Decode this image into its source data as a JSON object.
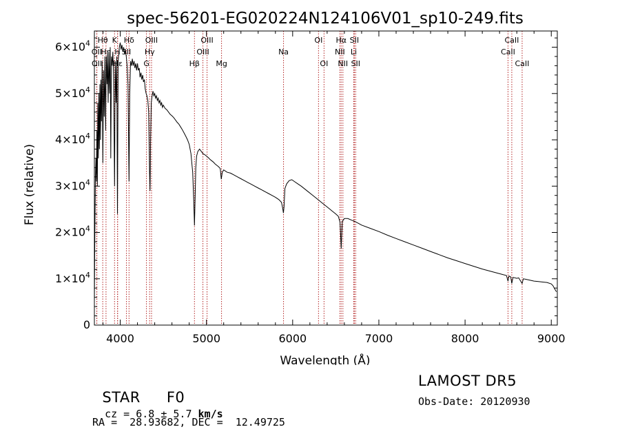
{
  "chart_data": {
    "type": "line",
    "title": "spec-56201-EG020224N124106V01_sp10-249.fits",
    "xlabel": "Wavelength (Å)",
    "ylabel": "Flux (relative)",
    "xlim": [
      3700,
      9070
    ],
    "ylim": [
      0,
      63500
    ],
    "x_ticks": [
      4000,
      5000,
      6000,
      7000,
      8000,
      9000
    ],
    "x_tick_labels": [
      "4000",
      "5000",
      "6000",
      "7000",
      "8000",
      "9000"
    ],
    "y_ticks": [
      0,
      10000,
      20000,
      30000,
      40000,
      50000,
      60000
    ],
    "y_tick_labels": [
      {
        "base": "0",
        "exp": ""
      },
      {
        "base": "1×10",
        "exp": "4"
      },
      {
        "base": "2×10",
        "exp": "4"
      },
      {
        "base": "3×10",
        "exp": "4"
      },
      {
        "base": "4×10",
        "exp": "4"
      },
      {
        "base": "5×10",
        "exp": "4"
      },
      {
        "base": "6×10",
        "exp": "4"
      }
    ],
    "line_color": "#000000",
    "marker_color": "#b22222",
    "series": [
      {
        "points": [
          [
            3700,
            5000
          ],
          [
            3705,
            18000
          ],
          [
            3712,
            32000
          ],
          [
            3718,
            36000
          ],
          [
            3724,
            31000
          ],
          [
            3729,
            42000
          ],
          [
            3734,
            30000
          ],
          [
            3740,
            48000
          ],
          [
            3746,
            36000
          ],
          [
            3752,
            50000
          ],
          [
            3758,
            38000
          ],
          [
            3764,
            52000
          ],
          [
            3770,
            40000
          ],
          [
            3776,
            53000
          ],
          [
            3782,
            44000
          ],
          [
            3790,
            57000
          ],
          [
            3798,
            35000
          ],
          [
            3806,
            55000
          ],
          [
            3814,
            45000
          ],
          [
            3822,
            58000
          ],
          [
            3830,
            42000
          ],
          [
            3838,
            58000
          ],
          [
            3846,
            52000
          ],
          [
            3852,
            59000
          ],
          [
            3860,
            48000
          ],
          [
            3868,
            59000
          ],
          [
            3876,
            50000
          ],
          [
            3884,
            60000
          ],
          [
            3890,
            36000
          ],
          [
            3898,
            58000
          ],
          [
            3906,
            56000
          ],
          [
            3914,
            59000
          ],
          [
            3922,
            54000
          ],
          [
            3934,
            30000
          ],
          [
            3942,
            57000
          ],
          [
            3952,
            48000
          ],
          [
            3960,
            58000
          ],
          [
            3968,
            24000
          ],
          [
            3976,
            57000
          ],
          [
            3990,
            60000
          ],
          [
            4000,
            61000
          ],
          [
            4010,
            59500
          ],
          [
            4020,
            60500
          ],
          [
            4030,
            59000
          ],
          [
            4040,
            60000
          ],
          [
            4050,
            58500
          ],
          [
            4060,
            59500
          ],
          [
            4070,
            58000
          ],
          [
            4080,
            56000
          ],
          [
            4090,
            52000
          ],
          [
            4102,
            31000
          ],
          [
            4110,
            50000
          ],
          [
            4120,
            57000
          ],
          [
            4130,
            56000
          ],
          [
            4140,
            57500
          ],
          [
            4150,
            56000
          ],
          [
            4160,
            57000
          ],
          [
            4170,
            55500
          ],
          [
            4180,
            56500
          ],
          [
            4190,
            55000
          ],
          [
            4200,
            56500
          ],
          [
            4210,
            55000
          ],
          [
            4220,
            55500
          ],
          [
            4230,
            53500
          ],
          [
            4240,
            54500
          ],
          [
            4250,
            53000
          ],
          [
            4260,
            54000
          ],
          [
            4270,
            52500
          ],
          [
            4280,
            53000
          ],
          [
            4290,
            51000
          ],
          [
            4300,
            50000
          ],
          [
            4310,
            49500
          ],
          [
            4320,
            48500
          ],
          [
            4330,
            46000
          ],
          [
            4340,
            33000
          ],
          [
            4346,
            29000
          ],
          [
            4352,
            40000
          ],
          [
            4360,
            48000
          ],
          [
            4370,
            49500
          ],
          [
            4380,
            50500
          ],
          [
            4390,
            49500
          ],
          [
            4400,
            50000
          ],
          [
            4410,
            49000
          ],
          [
            4420,
            49500
          ],
          [
            4430,
            48500
          ],
          [
            4440,
            49000
          ],
          [
            4450,
            48000
          ],
          [
            4460,
            48500
          ],
          [
            4470,
            47500
          ],
          [
            4480,
            48000
          ],
          [
            4490,
            47000
          ],
          [
            4500,
            47500
          ],
          [
            4520,
            46800
          ],
          [
            4540,
            46500
          ],
          [
            4560,
            46000
          ],
          [
            4580,
            45500
          ],
          [
            4600,
            45200
          ],
          [
            4620,
            44800
          ],
          [
            4640,
            44300
          ],
          [
            4660,
            43800
          ],
          [
            4680,
            43400
          ],
          [
            4700,
            42800
          ],
          [
            4720,
            42200
          ],
          [
            4740,
            41500
          ],
          [
            4760,
            40800
          ],
          [
            4780,
            40000
          ],
          [
            4800,
            39000
          ],
          [
            4820,
            37000
          ],
          [
            4840,
            33000
          ],
          [
            4852,
            27000
          ],
          [
            4861,
            21500
          ],
          [
            4868,
            27000
          ],
          [
            4876,
            34000
          ],
          [
            4886,
            36500
          ],
          [
            4900,
            37500
          ],
          [
            4920,
            38000
          ],
          [
            4940,
            37500
          ],
          [
            4960,
            37000
          ],
          [
            4980,
            36800
          ],
          [
            5000,
            36500
          ],
          [
            5020,
            36200
          ],
          [
            5040,
            35800
          ],
          [
            5060,
            35500
          ],
          [
            5080,
            35200
          ],
          [
            5100,
            34800
          ],
          [
            5120,
            34500
          ],
          [
            5140,
            34200
          ],
          [
            5160,
            33800
          ],
          [
            5172,
            31500
          ],
          [
            5184,
            33000
          ],
          [
            5200,
            33500
          ],
          [
            5240,
            33000
          ],
          [
            5280,
            32800
          ],
          [
            5320,
            32400
          ],
          [
            5360,
            32000
          ],
          [
            5400,
            31600
          ],
          [
            5440,
            31200
          ],
          [
            5480,
            30800
          ],
          [
            5520,
            30400
          ],
          [
            5560,
            30000
          ],
          [
            5600,
            29600
          ],
          [
            5640,
            29200
          ],
          [
            5680,
            28800
          ],
          [
            5720,
            28400
          ],
          [
            5760,
            28000
          ],
          [
            5800,
            27600
          ],
          [
            5840,
            27100
          ],
          [
            5870,
            26500
          ],
          [
            5885,
            25200
          ],
          [
            5893,
            24200
          ],
          [
            5900,
            25500
          ],
          [
            5910,
            29500
          ],
          [
            5930,
            30500
          ],
          [
            5960,
            31200
          ],
          [
            5990,
            31400
          ],
          [
            6020,
            31000
          ],
          [
            6060,
            30500
          ],
          [
            6100,
            30000
          ],
          [
            6140,
            29400
          ],
          [
            6180,
            28800
          ],
          [
            6220,
            28200
          ],
          [
            6260,
            27600
          ],
          [
            6300,
            27000
          ],
          [
            6340,
            26400
          ],
          [
            6380,
            25800
          ],
          [
            6420,
            25200
          ],
          [
            6460,
            24600
          ],
          [
            6500,
            24000
          ],
          [
            6530,
            23500
          ],
          [
            6550,
            22200
          ],
          [
            6558,
            19000
          ],
          [
            6563,
            16500
          ],
          [
            6568,
            19000
          ],
          [
            6576,
            22400
          ],
          [
            6600,
            23000
          ],
          [
            6640,
            23000
          ],
          [
            6680,
            22700
          ],
          [
            6720,
            22400
          ],
          [
            6760,
            22000
          ],
          [
            6800,
            21600
          ],
          [
            6900,
            20900
          ],
          [
            7000,
            20200
          ],
          [
            7100,
            19400
          ],
          [
            7200,
            18700
          ],
          [
            7300,
            18000
          ],
          [
            7400,
            17300
          ],
          [
            7500,
            16600
          ],
          [
            7600,
            15900
          ],
          [
            7700,
            15200
          ],
          [
            7800,
            14500
          ],
          [
            7900,
            13900
          ],
          [
            8000,
            13300
          ],
          [
            8100,
            12700
          ],
          [
            8200,
            12100
          ],
          [
            8300,
            11600
          ],
          [
            8400,
            11100
          ],
          [
            8480,
            10700
          ],
          [
            8498,
            9500
          ],
          [
            8510,
            10600
          ],
          [
            8530,
            10400
          ],
          [
            8542,
            9000
          ],
          [
            8556,
            10300
          ],
          [
            8600,
            10100
          ],
          [
            8622,
            10200
          ],
          [
            8662,
            9000
          ],
          [
            8676,
            10000
          ],
          [
            8700,
            9900
          ],
          [
            8750,
            9700
          ],
          [
            8800,
            9500
          ],
          [
            8850,
            9400
          ],
          [
            8900,
            9300
          ],
          [
            8950,
            9200
          ],
          [
            9000,
            8900
          ],
          [
            9020,
            8500
          ],
          [
            9040,
            7800
          ],
          [
            9060,
            7200
          ]
        ]
      }
    ],
    "lines": [
      {
        "label": "OII",
        "x": 3727,
        "row": 1
      },
      {
        "label": "OII",
        "x": 3729,
        "row": 2
      },
      {
        "label": "Hθ",
        "x": 3797,
        "row": 0
      },
      {
        "label": "Hη",
        "x": 3835,
        "row": 1
      },
      {
        "label": "K",
        "x": 3934,
        "row": 0
      },
      {
        "label": "Hε",
        "x": 3970,
        "row": 2
      },
      {
        "label": "H",
        "x": 3968,
        "row": 1
      },
      {
        "label": "Hδ",
        "x": 4102,
        "row": 0
      },
      {
        "label": "SII",
        "x": 4072,
        "row": 1
      },
      {
        "label": "G",
        "x": 4304,
        "row": 2
      },
      {
        "label": "OIII",
        "x": 4363,
        "row": 0
      },
      {
        "label": "Hγ",
        "x": 4341,
        "row": 1
      },
      {
        "label": "Hβ",
        "x": 4861,
        "row": 2
      },
      {
        "label": "OIII",
        "x": 5007,
        "row": 0
      },
      {
        "label": "OIII",
        "x": 4959,
        "row": 1
      },
      {
        "label": "Mg",
        "x": 5175,
        "row": 2
      },
      {
        "label": "Na",
        "x": 5894,
        "row": 1
      },
      {
        "label": "OI",
        "x": 6300,
        "row": 0
      },
      {
        "label": "OI",
        "x": 6364,
        "row": 2
      },
      {
        "label": "Hα",
        "x": 6563,
        "row": 0
      },
      {
        "label": "NII",
        "x": 6548,
        "row": 1
      },
      {
        "label": "NII",
        "x": 6583,
        "row": 2
      },
      {
        "label": "SII",
        "x": 6716,
        "row": 0
      },
      {
        "label": "Li",
        "x": 6708,
        "row": 1
      },
      {
        "label": "SII",
        "x": 6731,
        "row": 2
      },
      {
        "label": "CaII",
        "x": 8542,
        "row": 0
      },
      {
        "label": "CaII",
        "x": 8498,
        "row": 1
      },
      {
        "label": "CaII",
        "x": 8662,
        "row": 2
      }
    ]
  },
  "info": {
    "class": "STAR",
    "subclass": "F0",
    "cz_prefix": "cz = 6.8 ± 5.7 ",
    "cz_unit": "km/s",
    "coords": "RA =  28.93682, DEC =  12.49725",
    "survey": "LAMOST DR5",
    "obs_date": "Obs-Date: 20120930"
  }
}
